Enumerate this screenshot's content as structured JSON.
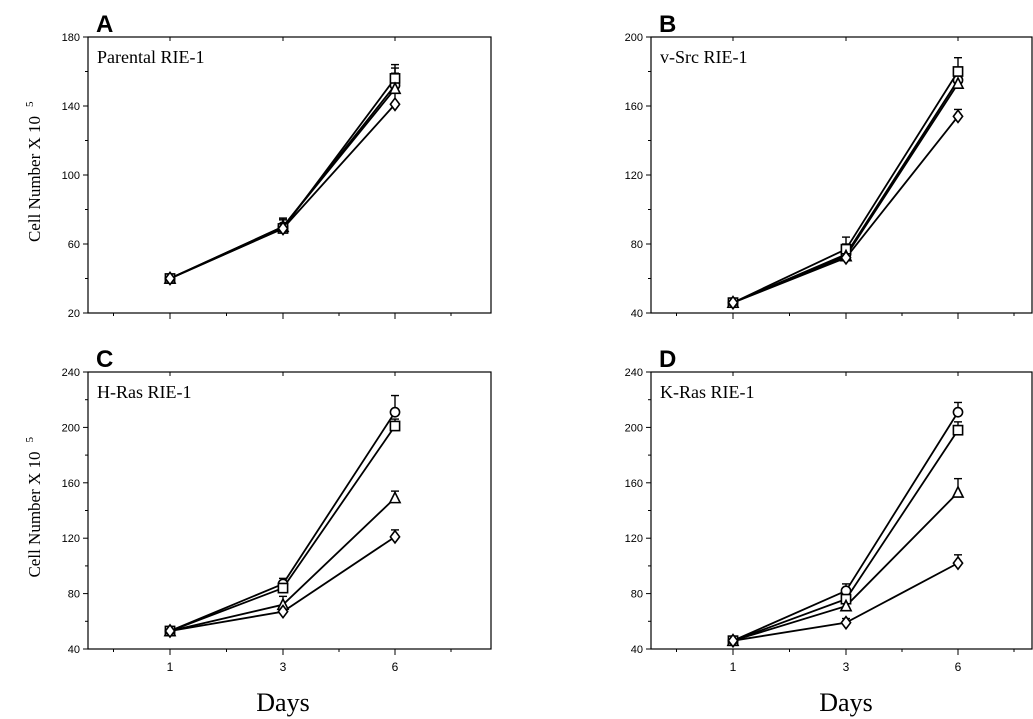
{
  "chart_data": [
    {
      "type": "line",
      "panel_label": "A",
      "title": "Parental RIE-1",
      "ylabel": "Cell Number X 10",
      "ylabel_exponent": "5",
      "xlabel": "",
      "x": [
        1,
        3,
        6
      ],
      "ylim": [
        20,
        180
      ],
      "yticks": [
        20,
        60,
        100,
        140,
        180
      ],
      "series": [
        {
          "marker": "circle",
          "values": [
            40,
            70,
            152
          ],
          "errors": [
            1,
            5,
            10
          ]
        },
        {
          "marker": "square",
          "values": [
            40,
            69,
            156
          ],
          "errors": [
            1,
            5,
            8
          ]
        },
        {
          "marker": "triangle",
          "values": [
            40,
            70,
            150
          ],
          "errors": [
            1,
            5,
            9
          ]
        },
        {
          "marker": "diamond",
          "values": [
            40,
            69,
            141
          ],
          "errors": [
            1,
            5,
            10
          ]
        }
      ]
    },
    {
      "type": "line",
      "panel_label": "B",
      "title": "v-Src RIE-1",
      "ylabel": "",
      "ylabel_exponent": "",
      "xlabel": "",
      "x": [
        1,
        3,
        6
      ],
      "ylim": [
        40,
        200
      ],
      "yticks": [
        40,
        80,
        120,
        160,
        200
      ],
      "series": [
        {
          "marker": "circle",
          "values": [
            46,
            74,
            175
          ],
          "errors": [
            1,
            6,
            6
          ]
        },
        {
          "marker": "square",
          "values": [
            46,
            77,
            180
          ],
          "errors": [
            1,
            7,
            8
          ]
        },
        {
          "marker": "triangle",
          "values": [
            46,
            73,
            173
          ],
          "errors": [
            1,
            5,
            4
          ]
        },
        {
          "marker": "diamond",
          "values": [
            46,
            72,
            154
          ],
          "errors": [
            1,
            4,
            4
          ]
        }
      ]
    },
    {
      "type": "line",
      "panel_label": "C",
      "title": "H-Ras RIE-1",
      "ylabel": "Cell Number X 10",
      "ylabel_exponent": "5",
      "xlabel": "Days",
      "x": [
        1,
        3,
        6
      ],
      "ylim": [
        40,
        240
      ],
      "yticks": [
        40,
        80,
        120,
        160,
        200,
        240
      ],
      "series": [
        {
          "marker": "circle",
          "values": [
            53,
            87,
            211
          ],
          "errors": [
            2,
            4,
            12
          ]
        },
        {
          "marker": "square",
          "values": [
            53,
            84,
            201
          ],
          "errors": [
            2,
            4,
            5
          ]
        },
        {
          "marker": "triangle",
          "values": [
            53,
            72,
            149
          ],
          "errors": [
            2,
            6,
            5
          ]
        },
        {
          "marker": "diamond",
          "values": [
            53,
            67,
            121
          ],
          "errors": [
            2,
            3,
            5
          ]
        }
      ]
    },
    {
      "type": "line",
      "panel_label": "D",
      "title": "K-Ras RIE-1",
      "ylabel": "",
      "ylabel_exponent": "",
      "xlabel": "Days",
      "x": [
        1,
        3,
        6
      ],
      "ylim": [
        40,
        240
      ],
      "yticks": [
        40,
        80,
        120,
        160,
        200,
        240
      ],
      "series": [
        {
          "marker": "circle",
          "values": [
            46,
            82,
            211
          ],
          "errors": [
            2,
            5,
            7
          ]
        },
        {
          "marker": "square",
          "values": [
            46,
            76,
            198
          ],
          "errors": [
            2,
            4,
            6
          ]
        },
        {
          "marker": "triangle",
          "values": [
            46,
            71,
            153
          ],
          "errors": [
            2,
            6,
            10
          ]
        },
        {
          "marker": "diamond",
          "values": [
            46,
            59,
            102
          ],
          "errors": [
            2,
            3,
            6
          ]
        }
      ]
    }
  ]
}
